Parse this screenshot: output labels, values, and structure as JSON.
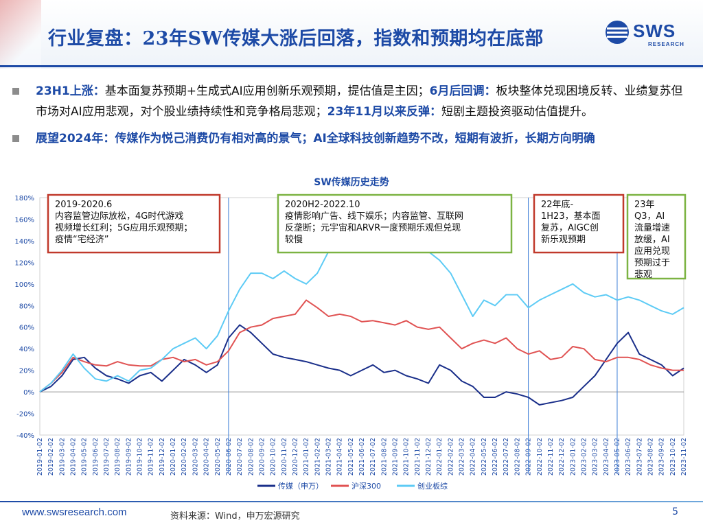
{
  "header": {
    "title": "行业复盘：23年SW传媒大涨后回落，指数和预期均在底部",
    "logo_text": "SWS",
    "logo_sub": "RESEARCH",
    "brand_color": "#1d4aa6"
  },
  "bullets": {
    "b1": {
      "h1": "23H1上涨：",
      "t1": "基本面复苏预期+生成式AI应用创新乐观预期，提估值是主因；",
      "h2": "6月后回调：",
      "t2": "板块整体兑现困境反转、业绩复苏但市场对AI应用悲观，对个股业绩持续性和竞争格局悲观；",
      "h3": "23年11月以来反弹：",
      "t3": "短剧主题投资驱动估值提升。"
    },
    "b2": "展望2024年：传媒作为悦己消费仍有相对高的景气；AI全球科技创新趋势不改，短期有波折，长期方向明确"
  },
  "chart_data": {
    "type": "line",
    "title": "SW传媒历史走势",
    "ylim": [
      -40,
      180
    ],
    "y_ticks": [
      "180%",
      "160%",
      "140%",
      "120%",
      "100%",
      "80%",
      "60%",
      "40%",
      "20%",
      "0%",
      "-20%",
      "-40%"
    ],
    "x_ticks": [
      "2019-01-02",
      "2019-02-02",
      "2019-03-02",
      "2019-04-02",
      "2019-05-02",
      "2019-06-02",
      "2019-07-02",
      "2019-08-02",
      "2019-09-02",
      "2019-10-02",
      "2019-11-02",
      "2019-12-02",
      "2020-01-02",
      "2020-02-02",
      "2020-03-02",
      "2020-04-02",
      "2020-05-02",
      "2020-06-02",
      "2020-07-02",
      "2020-08-02",
      "2020-09-02",
      "2020-10-02",
      "2020-11-02",
      "2020-12-02",
      "2021-01-02",
      "2021-02-02",
      "2021-03-02",
      "2021-04-02",
      "2021-05-02",
      "2021-06-02",
      "2021-07-02",
      "2021-08-02",
      "2021-09-02",
      "2021-10-02",
      "2021-11-02",
      "2021-12-02",
      "2022-01-02",
      "2022-02-02",
      "2022-03-02",
      "2022-04-02",
      "2022-05-02",
      "2022-06-02",
      "2022-07-02",
      "2022-08-02",
      "2022-09-02",
      "2022-10-02",
      "2022-11-02",
      "2022-12-02",
      "2023-01-02",
      "2023-02-02",
      "2023-03-02",
      "2023-04-02",
      "2023-05-02",
      "2023-06-02",
      "2023-07-02",
      "2023-08-02",
      "2023-09-02",
      "2023-10-02",
      "2023-11-02"
    ],
    "series": [
      {
        "name": "传媒（申万）",
        "color": "#1a2f8a",
        "values": [
          0,
          5,
          15,
          30,
          32,
          22,
          15,
          12,
          8,
          15,
          18,
          10,
          20,
          30,
          25,
          18,
          25,
          50,
          62,
          55,
          45,
          35,
          32,
          30,
          28,
          25,
          22,
          20,
          15,
          20,
          25,
          18,
          20,
          15,
          12,
          8,
          25,
          20,
          10,
          5,
          -5,
          -5,
          0,
          -2,
          -5,
          -12,
          -10,
          -8,
          -5,
          5,
          15,
          30,
          45,
          55,
          35,
          30,
          25,
          15,
          22
        ]
      },
      {
        "name": "沪深300",
        "color": "#e05252",
        "values": [
          0,
          8,
          18,
          32,
          28,
          25,
          24,
          28,
          25,
          24,
          24,
          30,
          32,
          28,
          30,
          25,
          28,
          38,
          55,
          60,
          62,
          68,
          70,
          72,
          85,
          78,
          70,
          72,
          70,
          65,
          66,
          64,
          62,
          66,
          60,
          58,
          60,
          50,
          40,
          45,
          48,
          45,
          50,
          40,
          35,
          38,
          30,
          32,
          42,
          40,
          30,
          28,
          32,
          32,
          30,
          25,
          22,
          20,
          20
        ]
      },
      {
        "name": "创业板综",
        "color": "#5dcbf5",
        "values": [
          0,
          8,
          20,
          35,
          22,
          12,
          10,
          15,
          10,
          20,
          22,
          30,
          40,
          45,
          50,
          40,
          52,
          75,
          95,
          110,
          110,
          105,
          112,
          105,
          100,
          110,
          130,
          140,
          145,
          130,
          140,
          135,
          148,
          138,
          150,
          130,
          122,
          110,
          90,
          70,
          85,
          80,
          90,
          90,
          78,
          85,
          90,
          95,
          100,
          92,
          88,
          90,
          85,
          88,
          85,
          80,
          75,
          72,
          78
        ]
      }
    ],
    "vlines_at": [
      "2020-06-02",
      "2022-09-02",
      "2023-05-02"
    ],
    "annotations": [
      {
        "lines": [
          "2019-2020.6",
          "内容监管边际放松，4G时代游戏",
          "视频增长红利；5G应用乐观预期；",
          "疫情“宅经济”"
        ],
        "border": "#c0392b"
      },
      {
        "lines": [
          "2020H2-2022.10",
          "疫情影响广告、线下娱乐；内容监管、互联网",
          "反垄断；元宇宙和ARVR一度预期乐观但兑现",
          "较慢"
        ],
        "border": "#7cb342"
      },
      {
        "lines": [
          "22年底-",
          "1H23，基本面",
          "复苏，AIGC创",
          "新乐观预期"
        ],
        "border": "#c0392b"
      },
      {
        "lines": [
          "23年",
          "Q3，AI",
          "流量增速",
          "放缓，AI",
          "应用兑现",
          "预期过于",
          "悲观"
        ],
        "border": "#7cb342"
      }
    ]
  },
  "footer": {
    "url": "www.swsresearch.com",
    "source": "资料来源：Wind，申万宏源研究",
    "page": "5"
  }
}
